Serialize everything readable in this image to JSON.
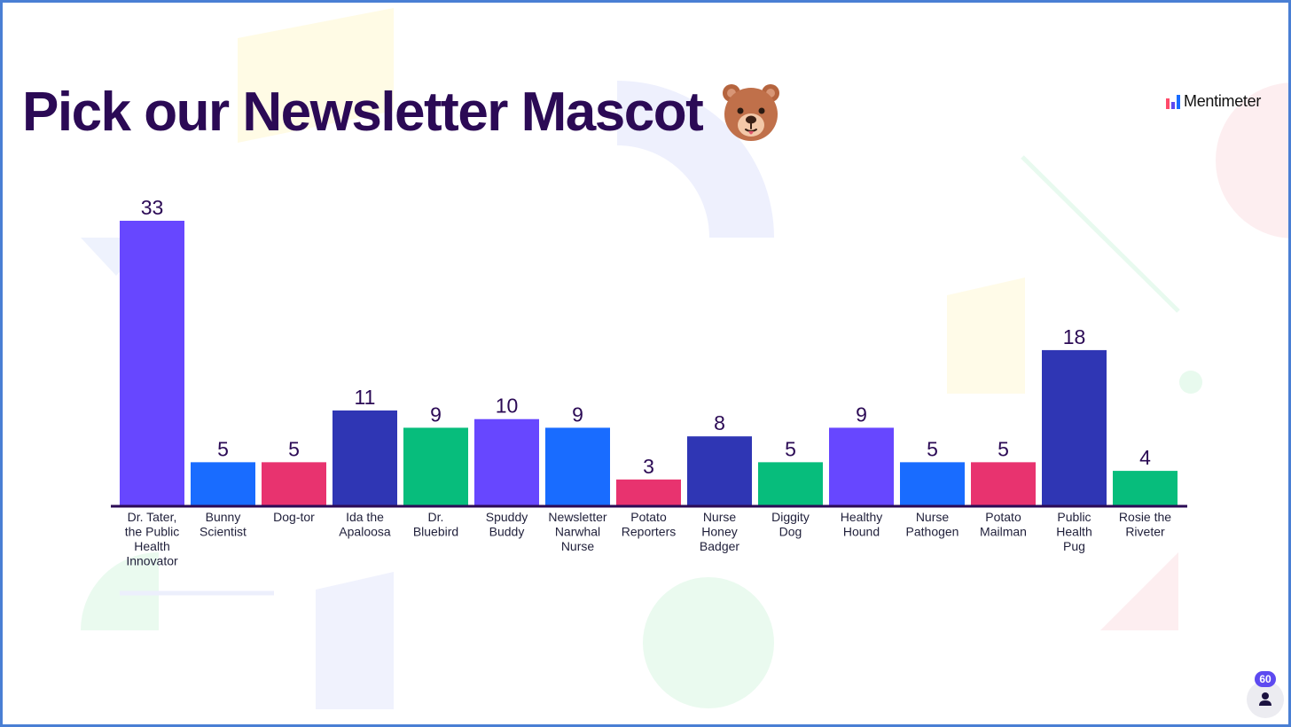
{
  "slide": {
    "title": "Pick our Newsletter Mascot",
    "title_emoji_icon": "bear-face-icon",
    "brand_name": "Mentimeter",
    "participant_count": "60",
    "participant_icon": "person-icon"
  },
  "colors": {
    "title": "#2b0a55",
    "bar_purple": "#6747ff",
    "bar_blue": "#196cff",
    "bar_pink": "#e8336f",
    "bar_navy": "#2f36b4",
    "bar_green": "#07bd7c",
    "axis": "#2b0a55"
  },
  "chart_data": {
    "type": "bar",
    "title": "Pick our Newsletter Mascot",
    "categories": [
      "Dr. Tater, the Public Health Innovator",
      "Bunny Scientist",
      "Dog-tor",
      "Ida the Apaloosa",
      "Dr. Bluebird",
      "Spuddy Buddy",
      "Newsletter Narwhal Nurse",
      "Potato Reporters",
      "Nurse Honey Badger",
      "Diggity Dog",
      "Healthy Hound",
      "Nurse Pathogen",
      "Potato Mailman",
      "Public Health Pug",
      "Rosie the Riveter"
    ],
    "category_label_lines": [
      [
        "Dr. Tater,",
        "the Public",
        "Health",
        "Innovator"
      ],
      [
        "Bunny",
        "Scientist"
      ],
      [
        "Dog-tor"
      ],
      [
        "Ida the",
        "Apaloosa"
      ],
      [
        "Dr.",
        "Bluebird"
      ],
      [
        "Spuddy",
        "Buddy"
      ],
      [
        "Newsletter",
        "Narwhal",
        "Nurse"
      ],
      [
        "Potato",
        "Reporters"
      ],
      [
        "Nurse",
        "Honey",
        "Badger"
      ],
      [
        "Diggity",
        "Dog"
      ],
      [
        "Healthy",
        "Hound"
      ],
      [
        "Nurse",
        "Pathogen"
      ],
      [
        "Potato",
        "Mailman"
      ],
      [
        "Public",
        "Health",
        "Pug"
      ],
      [
        "Rosie the",
        "Riveter"
      ]
    ],
    "values": [
      33,
      5,
      5,
      11,
      9,
      10,
      9,
      3,
      8,
      5,
      9,
      5,
      5,
      18,
      4
    ],
    "bar_colors": [
      "#6747ff",
      "#196cff",
      "#e8336f",
      "#2f36b4",
      "#07bd7c",
      "#6747ff",
      "#196cff",
      "#e8336f",
      "#2f36b4",
      "#07bd7c",
      "#6747ff",
      "#196cff",
      "#e8336f",
      "#2f36b4",
      "#07bd7c"
    ],
    "data_labels": true,
    "ylim": [
      0,
      33
    ],
    "grid": false,
    "legend": "none",
    "xlabel": "",
    "ylabel": ""
  }
}
